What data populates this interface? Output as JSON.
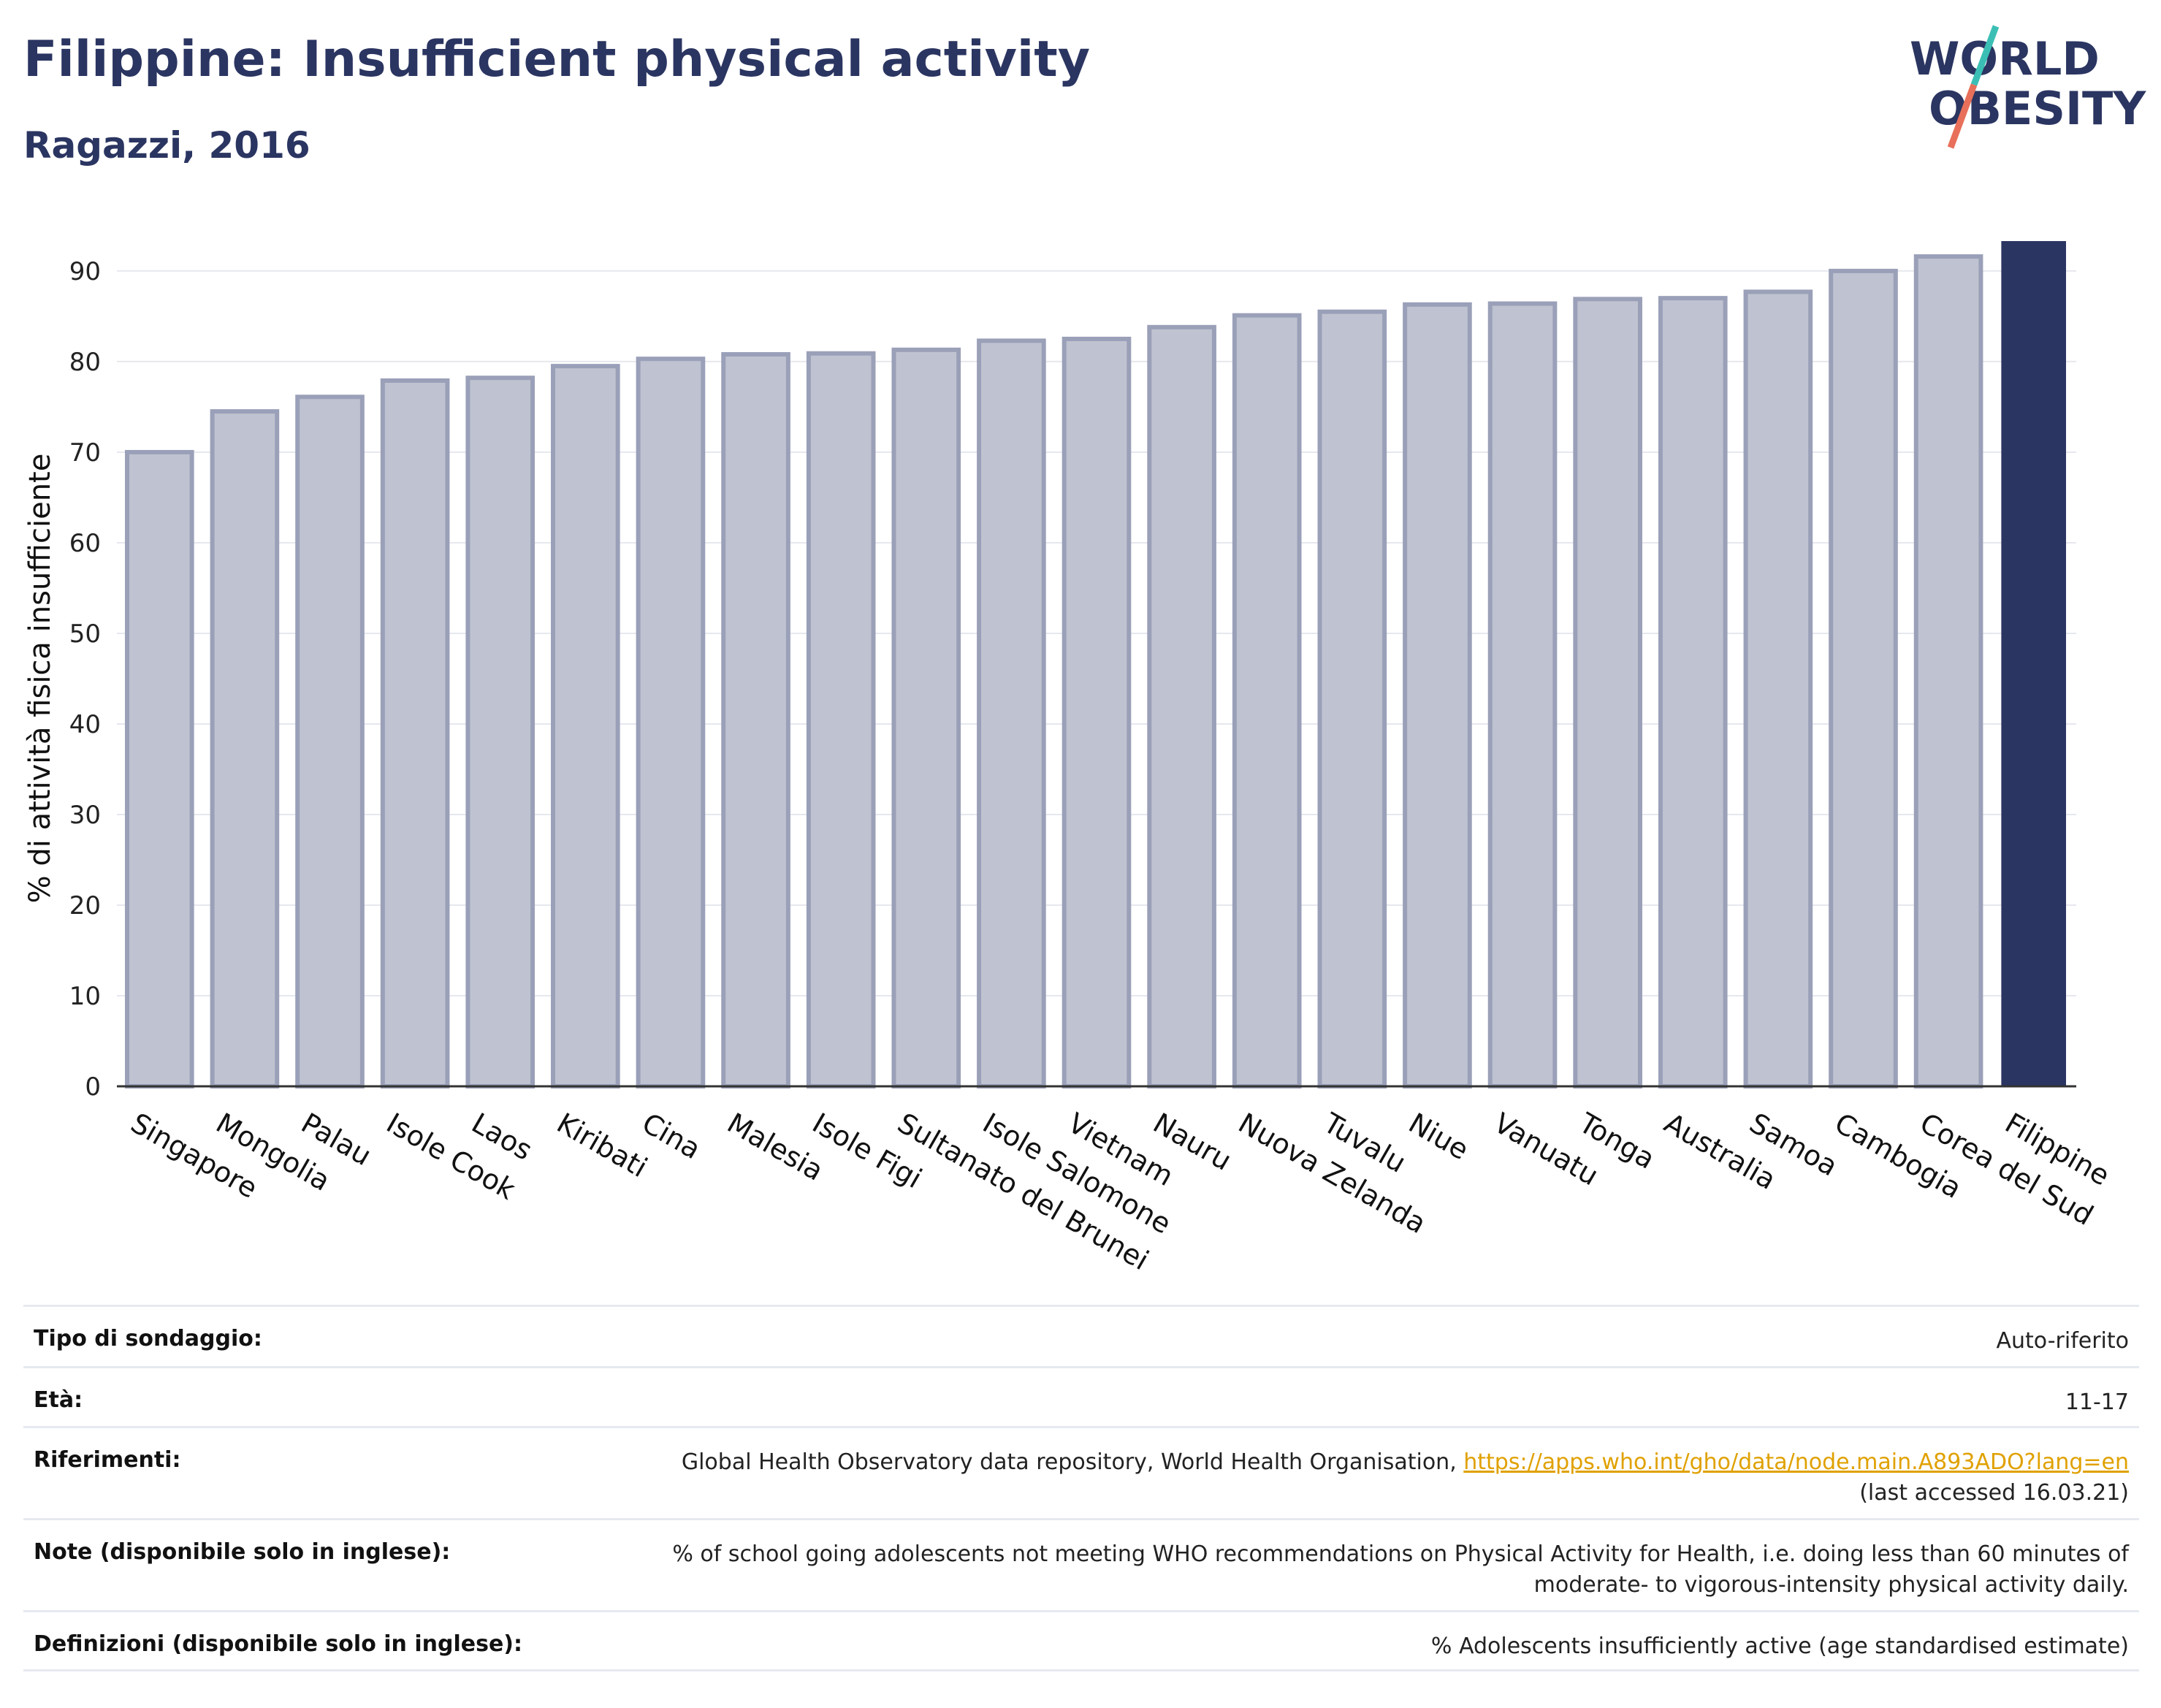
{
  "title": "Filippine: Insufficient physical activity",
  "subtitle": "Ragazzi, 2016",
  "logo": {
    "line1": "WORLD",
    "line2": "OBESITY"
  },
  "colors": {
    "bar": "#bfc3d1",
    "bar_border": "#9aa0b8",
    "highlight": "#2b3561",
    "grid": "#e6e8ee",
    "title": "#2b3561",
    "link": "#e0a100",
    "logo_teal": "#3bbfb4",
    "logo_coral": "#e8705a"
  },
  "chart_data": {
    "type": "bar",
    "categories": [
      "Singapore",
      "Mongolia",
      "Palau",
      "Isole Cook",
      "Laos",
      "Kiribati",
      "Cina",
      "Malesia",
      "Isole Figi",
      "Sultanato del Brunei",
      "Isole Salomone",
      "Vietnam",
      "Nauru",
      "Nuova Zelanda",
      "Tuvalu",
      "Niue",
      "Vanuatu",
      "Tonga",
      "Australia",
      "Samoa",
      "Cambogia",
      "Corea del Sud",
      "Filippine"
    ],
    "values": [
      70.0,
      74.5,
      76.1,
      77.9,
      78.2,
      79.5,
      80.3,
      80.8,
      80.9,
      81.3,
      82.3,
      82.5,
      83.8,
      85.1,
      85.5,
      86.3,
      86.4,
      86.9,
      87.0,
      87.7,
      90.0,
      91.6,
      93.3
    ],
    "highlight": "Filippine",
    "ylabel": "% di attività fisica insufficiente",
    "xlabel": "",
    "ylim": [
      0,
      93.3
    ],
    "yticks": [
      0,
      10,
      20,
      30,
      40,
      50,
      60,
      70,
      80,
      90
    ],
    "grid": true
  },
  "info": [
    {
      "label": "Tipo di sondaggio:",
      "value": "Auto-riferito"
    },
    {
      "label": "Età:",
      "value": "11-17"
    },
    {
      "label": "Riferimenti:",
      "value": "Global Health Observatory data repository, World Health Organisation, ",
      "link": "https://apps.who.int/gho/data/node.main.A893ADO?lang=en",
      "value_after": "(last accessed 16.03.21)"
    },
    {
      "label": "Note (disponibile solo in inglese):",
      "value": "% of school going adolescents not meeting WHO recommendations on Physical Activity for Health, i.e. doing less than 60 minutes of",
      "value2": "moderate- to vigorous-intensity physical activity daily."
    },
    {
      "label": "Definizioni (disponibile solo in inglese):",
      "value": "% Adolescents insufficiently active (age standardised estimate)"
    }
  ]
}
